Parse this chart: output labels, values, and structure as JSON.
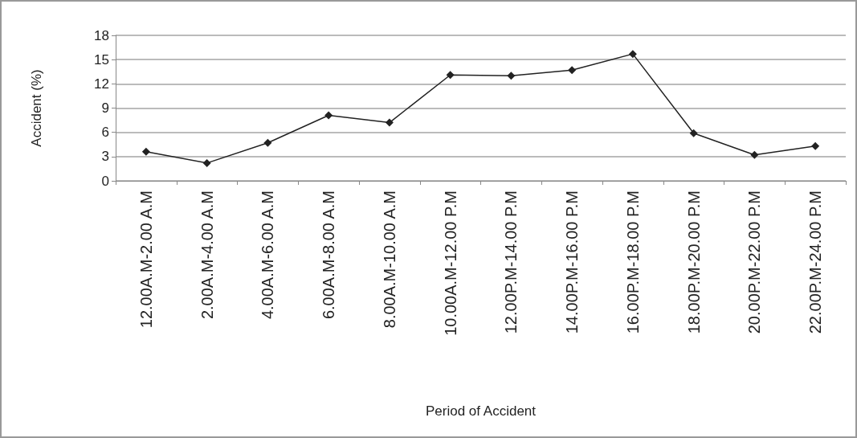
{
  "chart_data": {
    "type": "line",
    "xlabel": "Period of Accident",
    "ylabel": "Accident (%)",
    "categories": [
      "12.00A.M-2.00 A.M",
      "2.00A.M-4.00 A.M",
      "4.00A.M-6.00 A.M",
      "6.00A.M-8.00 A.M",
      "8.00A.M-10.00 A.M",
      "10.00A.M-12.00 P.M",
      "12.00P.M-14.00 P.M",
      "14.00P.M-16.00 P.M",
      "16.00P.M-18.00 P.M",
      "18.00P.M-20.00 P.M",
      "20.00P.M-22.00 P.M",
      "22.00P.M-24.00 P.M"
    ],
    "series": [
      {
        "color": "#222222",
        "values": [
          3.6,
          2.2,
          4.7,
          8.1,
          7.2,
          13.1,
          13.0,
          13.7,
          15.7,
          5.9,
          3.2,
          4.3
        ]
      }
    ],
    "ylim": [
      0,
      18
    ],
    "yticks": [
      0,
      3,
      6,
      9,
      12,
      15,
      18
    ],
    "grid": "y",
    "marker": "diamond",
    "line_style": "solid"
  }
}
